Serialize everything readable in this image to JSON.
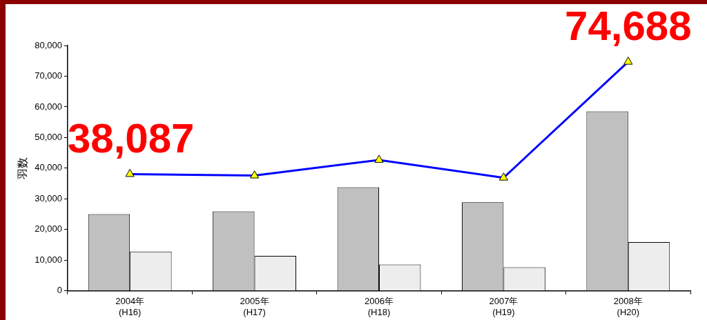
{
  "chart_data": {
    "type": "bar",
    "ylabel": "羽数",
    "categories": [
      "2004年\n(H16)",
      "2005年\n(H17)",
      "2006年\n(H18)",
      "2007年\n(H19)",
      "2008年\n(H20)"
    ],
    "series": [
      {
        "color": "#c0c0c0",
        "values": [
          25000,
          25900,
          33800,
          28900,
          58500
        ]
      },
      {
        "color": "#ededed",
        "values": [
          12800,
          11400,
          8600,
          7700,
          15900
        ]
      },
      {
        "type": "line",
        "color": "#0000ff",
        "marker": "triangle",
        "values": [
          38087,
          37600,
          42700,
          36900,
          74688
        ]
      }
    ],
    "ylim": [
      0,
      80000
    ],
    "yticks": [
      0,
      {
        "value": 10000,
        "label": "10,000"
      },
      {
        "value": 20000,
        "label": "20,000"
      },
      {
        "value": 30000,
        "label": "30,000"
      },
      {
        "value": 40000,
        "label": "40,000"
      },
      {
        "value": 50000,
        "label": "50,000"
      },
      {
        "value": 60000,
        "label": "60,000"
      },
      {
        "value": 70000,
        "label": "70,000"
      },
      {
        "value": 80000,
        "label": "80,000"
      }
    ],
    "grid": false,
    "legend": false,
    "annotations": [
      {
        "text": "38,087",
        "x": "2004年\n(H16)",
        "y": 38087
      },
      {
        "text": "74,688",
        "x": "2008年\n(H20)",
        "y": 74688
      }
    ]
  }
}
